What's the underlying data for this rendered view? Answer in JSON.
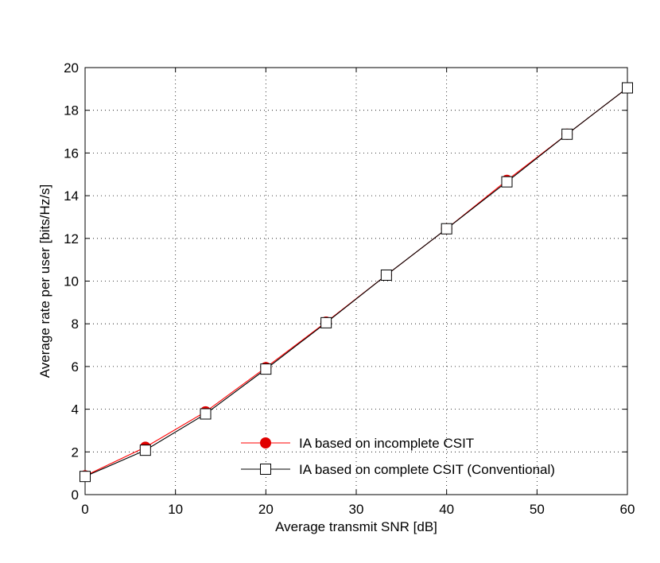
{
  "chart_data": {
    "type": "line",
    "title": "",
    "xlabel": "Average transmit SNR [dB]",
    "ylabel": "Average rate per user [bits/Hz/s]",
    "xlim": [
      0,
      60
    ],
    "ylim": [
      0,
      20
    ],
    "xticks": [
      0,
      10,
      20,
      30,
      40,
      50,
      60
    ],
    "yticks": [
      0,
      2,
      4,
      6,
      8,
      10,
      12,
      14,
      16,
      18,
      20
    ],
    "xtick_labels": [
      "0",
      "10",
      "20",
      "30",
      "40",
      "50",
      "60"
    ],
    "ytick_labels": [
      "0",
      "2",
      "4",
      "6",
      "8",
      "10",
      "12",
      "14",
      "16",
      "18",
      "20"
    ],
    "grid": true,
    "legend_position": "bottom-right",
    "series": [
      {
        "name": "IA based on incomplete CSIT",
        "color": "#ff0000",
        "marker_color": "#e00000",
        "marker": "filled-circle",
        "x": [
          0,
          6.67,
          13.33,
          20,
          26.67,
          33.33,
          40,
          46.67,
          53.33,
          60
        ],
        "y": [
          0.88,
          2.22,
          3.88,
          5.95,
          8.08,
          10.28,
          12.45,
          14.72,
          16.88,
          19.05
        ]
      },
      {
        "name": "IA based on complete CSIT (Conventional)",
        "color": "#000000",
        "marker": "open-square",
        "x": [
          0,
          6.67,
          13.33,
          20,
          26.67,
          33.33,
          40,
          46.67,
          53.33,
          60
        ],
        "y": [
          0.85,
          2.08,
          3.78,
          5.88,
          8.05,
          10.28,
          12.45,
          14.65,
          16.88,
          19.05
        ]
      }
    ]
  }
}
